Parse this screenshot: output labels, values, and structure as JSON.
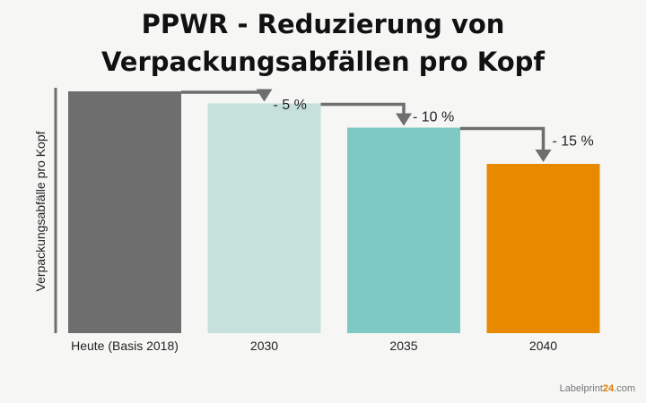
{
  "chart_data": {
    "type": "bar",
    "title": [
      "PPWR - Reduzierung von",
      "Verpackungsabfällen pro Kopf"
    ],
    "ylabel": "Verpackungsabfälle pro Kopf",
    "xlabel": "",
    "categories": [
      "Heute (Basis 2018)",
      "2030",
      "2035",
      "2040"
    ],
    "values": [
      100,
      95,
      85,
      70
    ],
    "ylim": [
      0,
      100
    ],
    "colors": [
      "#6e6e6e",
      "#c6e0dc",
      "#7fc9c4",
      "#e88a00"
    ],
    "annotations": [
      "- 5 %",
      "- 10 %",
      "- 15 %"
    ],
    "arrow_color": "#6e6e6e",
    "grid": false
  },
  "brand": {
    "prefix": "Labelprint",
    "accent": "24",
    "suffix": ".com"
  }
}
